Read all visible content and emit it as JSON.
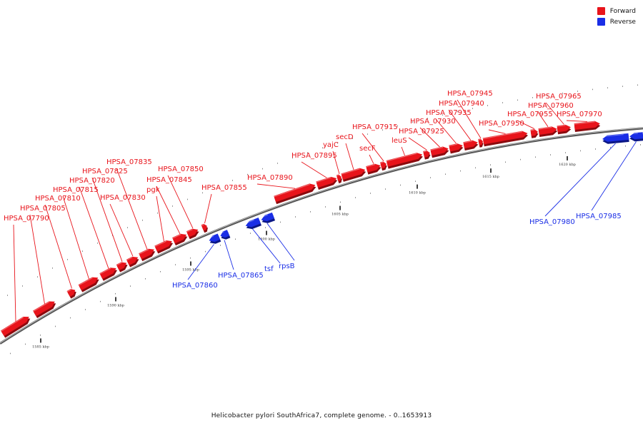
{
  "legend": {
    "forward_label": "Forward",
    "reverse_label": "Reverse",
    "forward_color": "#e8141b",
    "reverse_color": "#1a2ee6"
  },
  "caption": "Helicobacter pylori SouthAfrica7, complete genome. - 0..1653913",
  "scale": {
    "ticks": [
      {
        "kbp": 1585,
        "label": "1585 kbp"
      },
      {
        "kbp": 1590,
        "label": "1590 kbp"
      },
      {
        "kbp": 1595,
        "label": "1595 kbp"
      },
      {
        "kbp": 1600,
        "label": "1600 kbp"
      },
      {
        "kbp": 1605,
        "label": "1605 kbp"
      },
      {
        "kbp": 1610,
        "label": "1610 kbp"
      },
      {
        "kbp": 1615,
        "label": "1615 kbp"
      },
      {
        "kbp": 1620,
        "label": "1620 kbp"
      }
    ]
  },
  "genes": [
    {
      "name": "HPSA_07790",
      "strand": "forward"
    },
    {
      "name": "HPSA_07805",
      "strand": "forward"
    },
    {
      "name": "HPSA_07810",
      "strand": "forward"
    },
    {
      "name": "HPSA_07815",
      "strand": "forward"
    },
    {
      "name": "HPSA_07820",
      "strand": "forward"
    },
    {
      "name": "HPSA_07825",
      "strand": "forward"
    },
    {
      "name": "HPSA_07830",
      "strand": "forward"
    },
    {
      "name": "HPSA_07835",
      "strand": "forward"
    },
    {
      "name": "pgk",
      "strand": "forward"
    },
    {
      "name": "HPSA_07845",
      "strand": "forward"
    },
    {
      "name": "HPSA_07850",
      "strand": "forward"
    },
    {
      "name": "HPSA_07855",
      "strand": "forward"
    },
    {
      "name": "HPSA_07860",
      "strand": "reverse"
    },
    {
      "name": "HPSA_07865",
      "strand": "reverse"
    },
    {
      "name": "tsf",
      "strand": "reverse"
    },
    {
      "name": "rpsB",
      "strand": "reverse"
    },
    {
      "name": "HPSA_07890",
      "strand": "forward"
    },
    {
      "name": "HPSA_07895",
      "strand": "forward"
    },
    {
      "name": "yajC",
      "strand": "forward"
    },
    {
      "name": "secD",
      "strand": "forward"
    },
    {
      "name": "secF",
      "strand": "forward"
    },
    {
      "name": "HPSA_07915",
      "strand": "forward"
    },
    {
      "name": "leuS",
      "strand": "forward"
    },
    {
      "name": "HPSA_07925",
      "strand": "forward"
    },
    {
      "name": "HPSA_07930",
      "strand": "forward"
    },
    {
      "name": "HPSA_07935",
      "strand": "forward"
    },
    {
      "name": "HPSA_07940",
      "strand": "forward"
    },
    {
      "name": "HPSA_07945",
      "strand": "forward"
    },
    {
      "name": "HPSA_07950",
      "strand": "forward"
    },
    {
      "name": "HPSA_07955",
      "strand": "forward"
    },
    {
      "name": "HPSA_07960",
      "strand": "forward"
    },
    {
      "name": "HPSA_07965",
      "strand": "forward"
    },
    {
      "name": "HPSA_07970",
      "strand": "forward"
    },
    {
      "name": "HPSA_07980",
      "strand": "reverse"
    },
    {
      "name": "HPSA_07985",
      "strand": "reverse"
    }
  ]
}
